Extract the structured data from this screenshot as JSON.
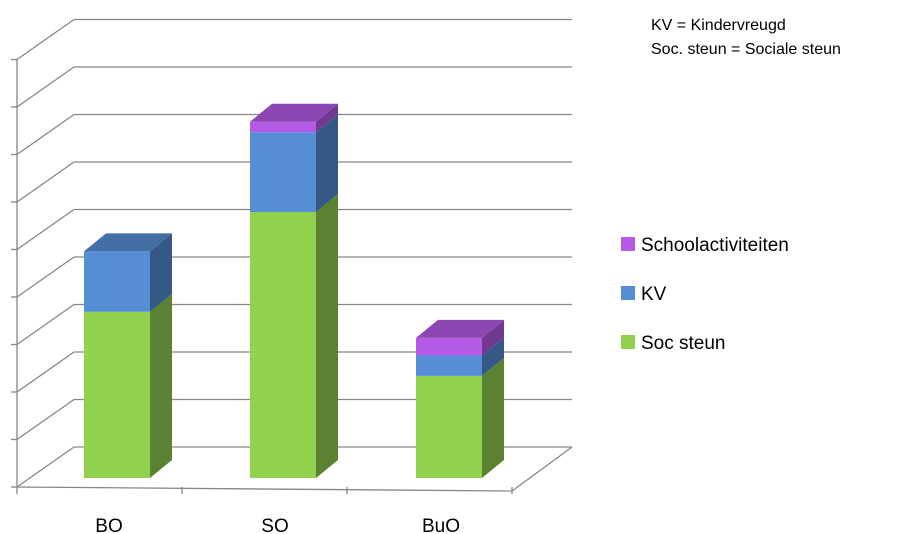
{
  "chart_data": {
    "type": "bar",
    "stacked": true,
    "style": "3d",
    "categories": [
      "BO",
      "SO",
      "BuO"
    ],
    "series": [
      {
        "name": "Soc steun",
        "values": [
          3.5,
          5.6,
          2.15
        ],
        "color": "#92D050"
      },
      {
        "name": "KV",
        "values": [
          1.27,
          1.68,
          0.43
        ],
        "color": "#558ED5"
      },
      {
        "name": "Schoolactiviteiten",
        "values": [
          0.0,
          0.22,
          0.37
        ],
        "color": "#B45BE6"
      }
    ],
    "ylim": [
      0,
      9
    ],
    "y_tick_step": 1,
    "grid": true,
    "legend": {
      "position": "right",
      "order": [
        "Schoolactiviteiten",
        "KV",
        "Soc steun"
      ]
    },
    "notes": [
      "KV = Kindervreugd",
      "Soc. steun = Sociale steun"
    ]
  }
}
